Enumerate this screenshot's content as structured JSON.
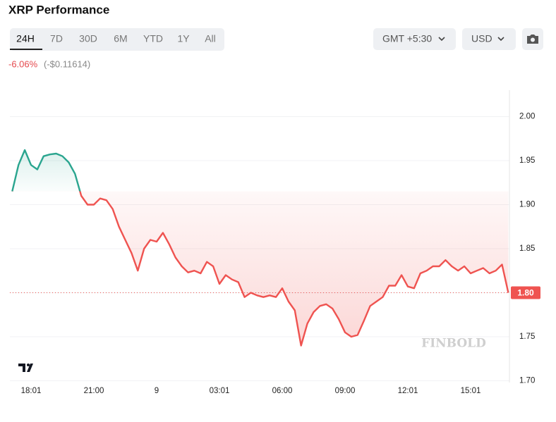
{
  "ui": {
    "ranges": [
      "24H",
      "7D",
      "30D",
      "6M",
      "YTD",
      "1Y",
      "All"
    ],
    "selected_range": 0,
    "timezone": "GMT +5:30",
    "currency": "USD",
    "change_percent": "-6.06%",
    "change_amount": "(-$0.11614)",
    "watermark": "FINBOLD"
  },
  "chart_data": {
    "type": "line",
    "title": "XRP Performance",
    "categories": [
      null,
      null,
      null,
      "18:01",
      null,
      null,
      null,
      null,
      null,
      null,
      null,
      null,
      null,
      "21:00",
      null,
      null,
      null,
      null,
      null,
      null,
      null,
      null,
      null,
      "9",
      null,
      null,
      null,
      null,
      null,
      null,
      null,
      null,
      null,
      "03:01",
      null,
      null,
      null,
      null,
      null,
      null,
      null,
      null,
      null,
      "06:00",
      null,
      null,
      null,
      null,
      null,
      null,
      null,
      null,
      null,
      "09:00",
      null,
      null,
      null,
      null,
      null,
      null,
      null,
      null,
      null,
      "12:01",
      null,
      null,
      null,
      null,
      null,
      null,
      null,
      null,
      null,
      "15:01",
      null,
      null,
      null,
      null,
      null,
      null
    ],
    "series": [
      {
        "name": "XRP",
        "up_color": "#2aa58f",
        "down_color": "#ef5350",
        "values": [
          1.915,
          1.945,
          1.962,
          1.945,
          1.94,
          1.955,
          1.957,
          1.958,
          1.955,
          1.948,
          1.935,
          1.91,
          1.9,
          1.9,
          1.907,
          1.905,
          1.895,
          1.875,
          1.86,
          1.845,
          1.825,
          1.85,
          1.86,
          1.858,
          1.868,
          1.855,
          1.84,
          1.83,
          1.823,
          1.825,
          1.822,
          1.835,
          1.83,
          1.81,
          1.82,
          1.815,
          1.812,
          1.795,
          1.8,
          1.797,
          1.795,
          1.797,
          1.795,
          1.805,
          1.79,
          1.78,
          1.74,
          1.765,
          1.778,
          1.785,
          1.787,
          1.782,
          1.77,
          1.755,
          1.75,
          1.752,
          1.768,
          1.785,
          1.79,
          1.795,
          1.808,
          1.808,
          1.82,
          1.807,
          1.805,
          1.822,
          1.825,
          1.83,
          1.83,
          1.837,
          1.83,
          1.825,
          1.83,
          1.822,
          1.825,
          1.828,
          1.822,
          1.825,
          1.832,
          1.8
        ],
        "value_labels": [
          null,
          null,
          null,
          null,
          null,
          null,
          null,
          null,
          null,
          null,
          null,
          null,
          null,
          null,
          null,
          null,
          null,
          null,
          null,
          null,
          null,
          null,
          null,
          null,
          null,
          null,
          null,
          null,
          null,
          null,
          null,
          null,
          null,
          null,
          null,
          null,
          null,
          null,
          null,
          null,
          null,
          null,
          null,
          null,
          null,
          null,
          null,
          null,
          null,
          null,
          null,
          null,
          null,
          null,
          null,
          null,
          null,
          null,
          null,
          null,
          null,
          null,
          null,
          null,
          null,
          null,
          null,
          null,
          null,
          null,
          null,
          null,
          null,
          null,
          null,
          null,
          null,
          null,
          null,
          "1.80"
        ]
      }
    ],
    "ylim": [
      1.698,
      2.03
    ],
    "yticks": [
      {
        "value": 1.7,
        "label": "1.70"
      },
      1.75,
      {
        "value": 1.8,
        "label": "1.80"
      },
      1.85,
      {
        "value": 1.9,
        "label": "1.90"
      },
      1.95,
      {
        "value": 2.0,
        "label": "2.00"
      }
    ],
    "grid": true
  }
}
